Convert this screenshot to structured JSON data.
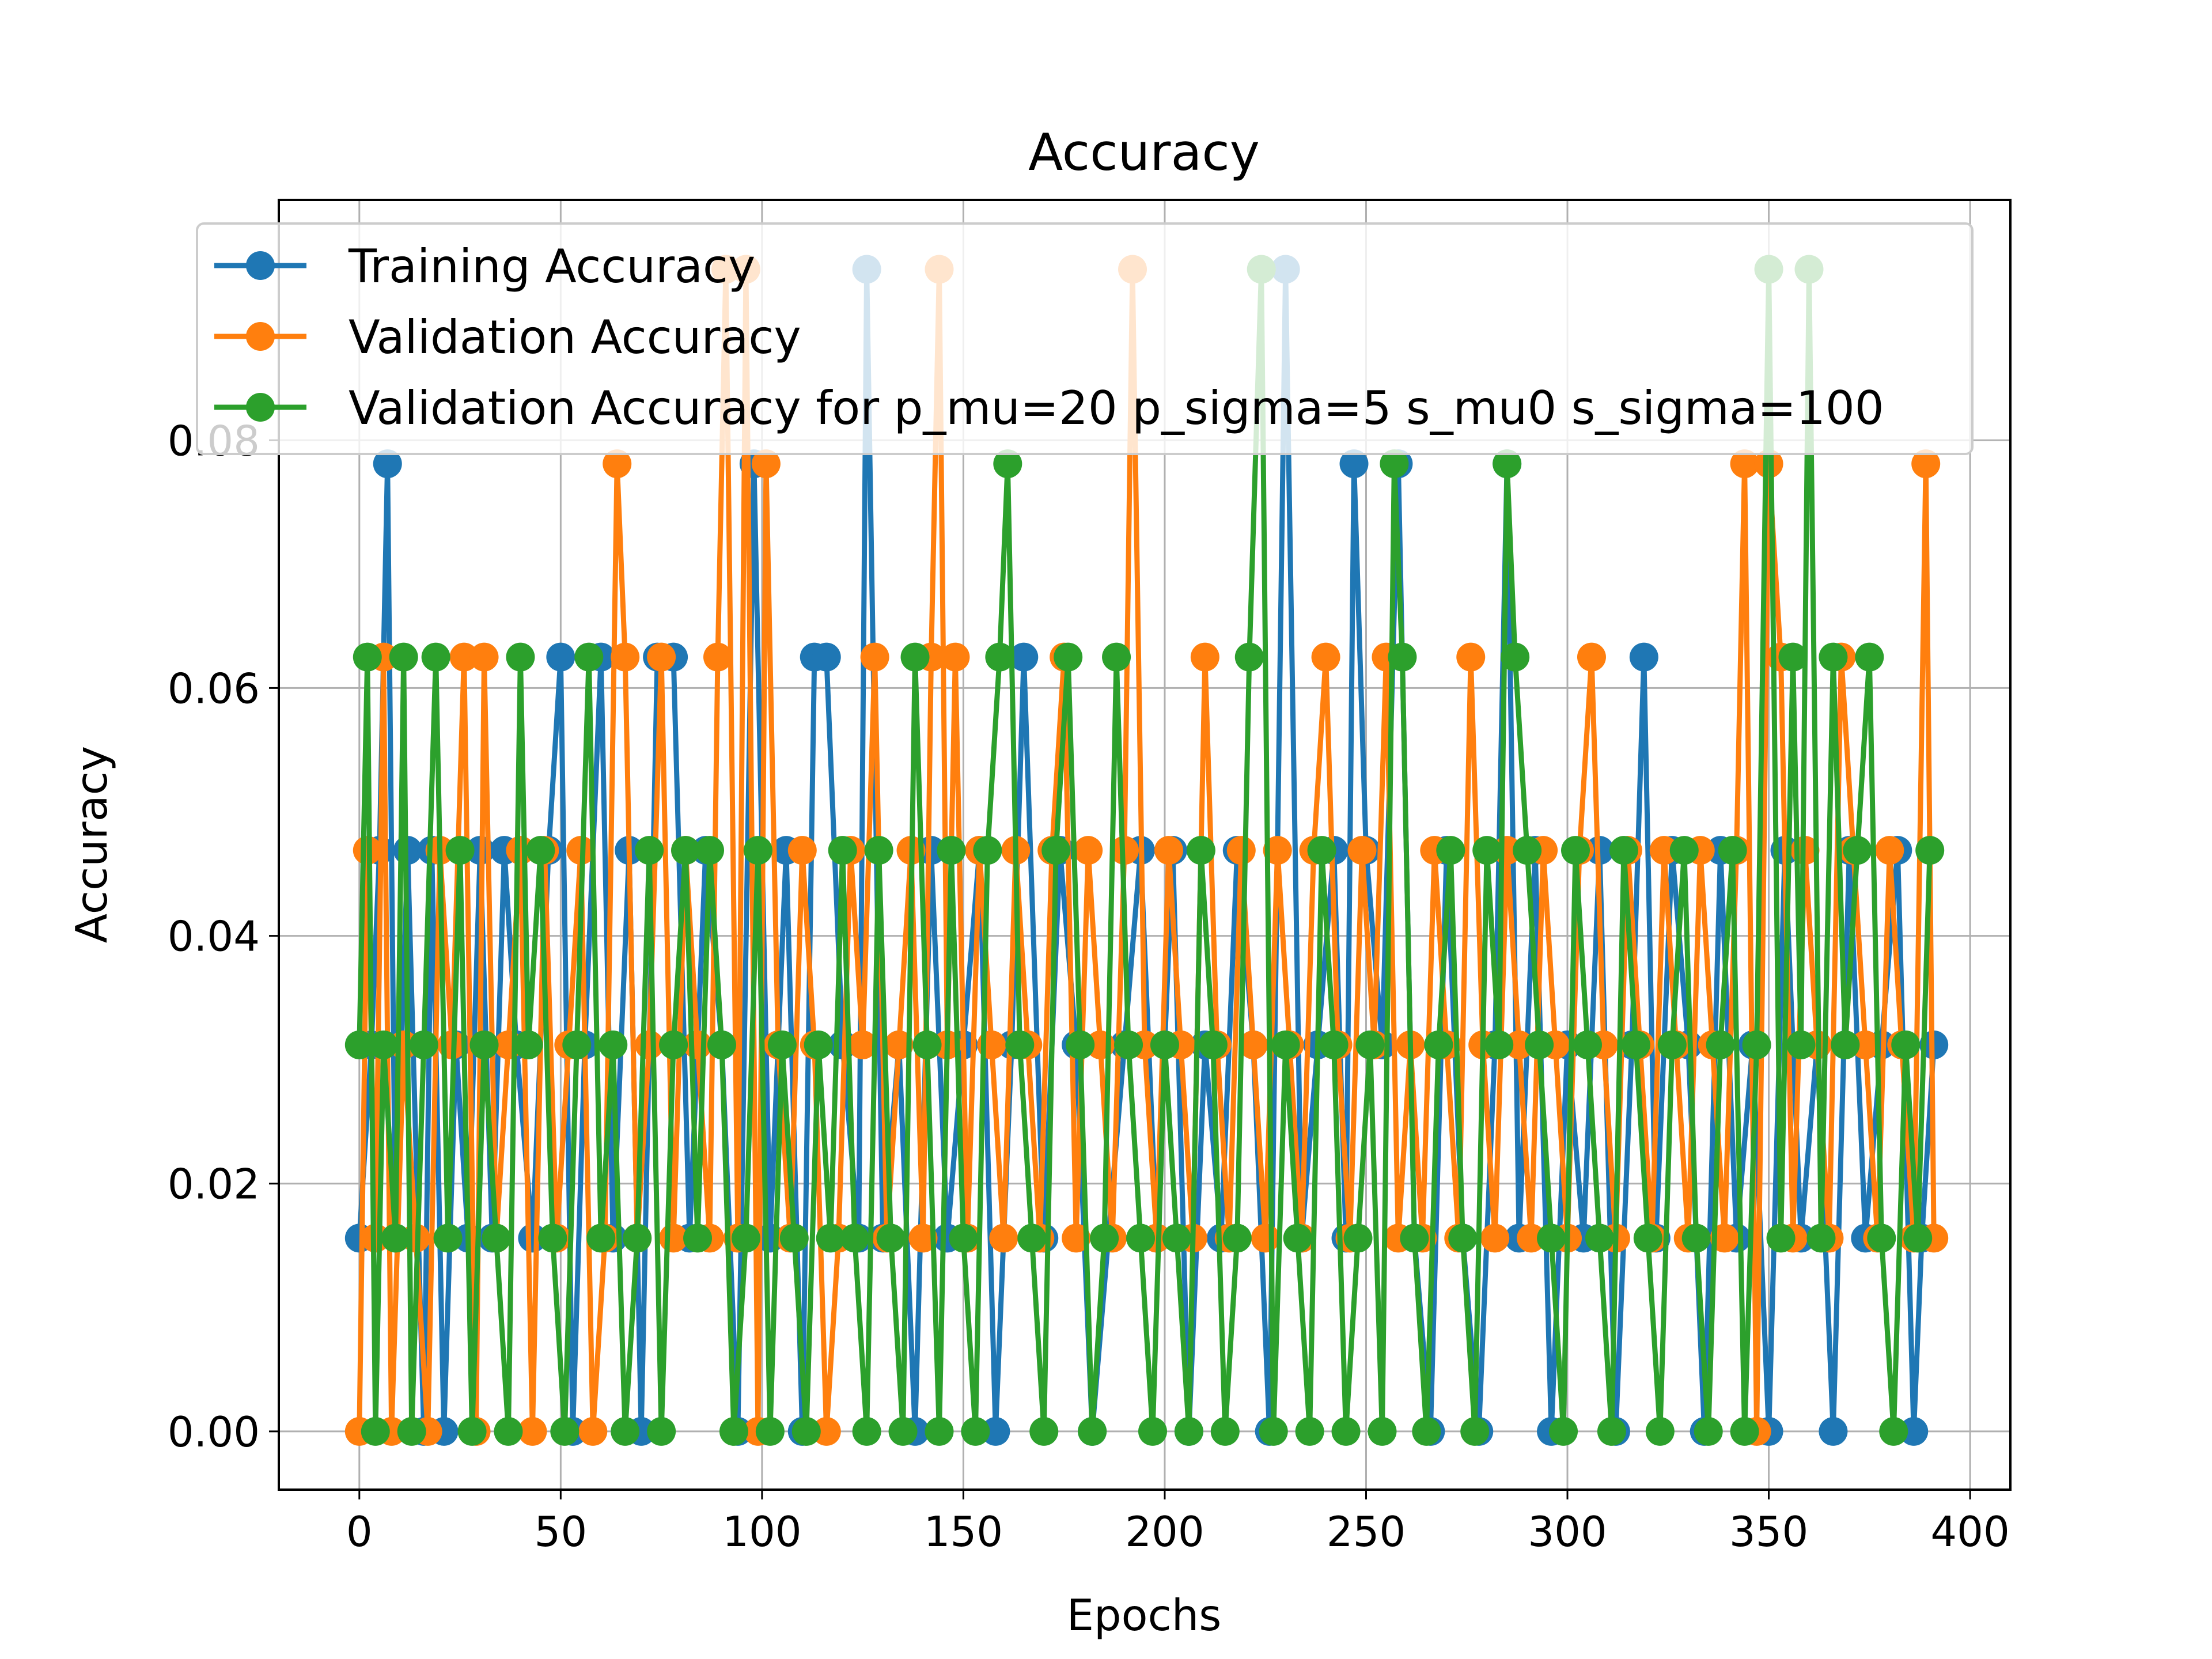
{
  "chart_data": {
    "type": "line",
    "title": "Accuracy",
    "xlabel": "Epochs",
    "ylabel": "Accuracy",
    "xlim": [
      -20,
      410
    ],
    "ylim": [
      -0.0047,
      0.0994
    ],
    "xticks": [
      0,
      50,
      100,
      150,
      200,
      250,
      300,
      350,
      400
    ],
    "xtick_labels": [
      "0",
      "50",
      "100",
      "150",
      "200",
      "250",
      "300",
      "350",
      "400"
    ],
    "yticks": [
      0.0,
      0.02,
      0.04,
      0.06,
      0.08
    ],
    "ytick_labels": [
      "0.00",
      "0.02",
      "0.04",
      "0.06",
      "0.08"
    ],
    "grid": true,
    "legend_position": "upper-left",
    "series": [
      {
        "name": "Training Accuracy",
        "color": "#1f77b4",
        "x": [
          0,
          3,
          5,
          7,
          9,
          12,
          16,
          18,
          21,
          24,
          27,
          30,
          33,
          36,
          39,
          43,
          47,
          50,
          53,
          56,
          60,
          63,
          67,
          70,
          74,
          78,
          82,
          86,
          90,
          94,
          98,
          102,
          106,
          110,
          113,
          116,
          120,
          124,
          126,
          130,
          134,
          138,
          142,
          146,
          150,
          154,
          158,
          162,
          165,
          170,
          174,
          178,
          182,
          186,
          190,
          194,
          198,
          202,
          206,
          210,
          214,
          218,
          222,
          226,
          230,
          234,
          238,
          242,
          245,
          247,
          250,
          254,
          258,
          262,
          266,
          270,
          274,
          278,
          282,
          285,
          288,
          292,
          296,
          300,
          304,
          308,
          312,
          316,
          319,
          322,
          326,
          330,
          334,
          338,
          342,
          346,
          350,
          354,
          358,
          362,
          366,
          370,
          374,
          378,
          382,
          386,
          388,
          391
        ],
        "y": [
          0.0156,
          0.0312,
          0.0469,
          0.0781,
          0.0156,
          0.0469,
          0.0,
          0.0469,
          0.0,
          0.0312,
          0.0156,
          0.0469,
          0.0156,
          0.0469,
          0.0312,
          0.0156,
          0.0469,
          0.0625,
          0.0,
          0.0312,
          0.0625,
          0.0156,
          0.0469,
          0.0,
          0.0625,
          0.0625,
          0.0156,
          0.0469,
          0.0312,
          0.0,
          0.0781,
          0.0156,
          0.0469,
          0.0,
          0.0625,
          0.0625,
          0.0312,
          0.0156,
          0.0938,
          0.0156,
          0.0312,
          0.0,
          0.0469,
          0.0156,
          0.0312,
          0.0469,
          0.0,
          0.0312,
          0.0625,
          0.0156,
          0.0469,
          0.0312,
          0.0,
          0.0156,
          0.0312,
          0.0469,
          0.0156,
          0.0469,
          0.0,
          0.0312,
          0.0156,
          0.0469,
          0.0312,
          0.0,
          0.0938,
          0.0156,
          0.0312,
          0.0469,
          0.0156,
          0.0781,
          0.0469,
          0.0312,
          0.0781,
          0.0156,
          0.0,
          0.0469,
          0.0156,
          0.0,
          0.0312,
          0.0781,
          0.0156,
          0.0469,
          0.0,
          0.0312,
          0.0156,
          0.0469,
          0.0,
          0.0312,
          0.0625,
          0.0156,
          0.0469,
          0.0312,
          0.0,
          0.0469,
          0.0156,
          0.0312,
          0.0,
          0.0469,
          0.0156,
          0.0312,
          0.0,
          0.0469,
          0.0156,
          0.0312,
          0.0469,
          0.0,
          0.0156,
          0.0312
        ]
      },
      {
        "name": "Validation Accuracy",
        "color": "#ff7f0e",
        "x": [
          0,
          2,
          4,
          6,
          8,
          11,
          14,
          17,
          20,
          23,
          26,
          29,
          31,
          34,
          37,
          40,
          43,
          46,
          49,
          52,
          55,
          58,
          61,
          64,
          66,
          69,
          72,
          75,
          78,
          81,
          84,
          87,
          89,
          91,
          94,
          96,
          99,
          101,
          104,
          107,
          110,
          113,
          116,
          119,
          122,
          125,
          128,
          131,
          134,
          137,
          140,
          142,
          144,
          146,
          148,
          151,
          154,
          157,
          160,
          163,
          166,
          169,
          172,
          175,
          178,
          181,
          184,
          187,
          190,
          192,
          195,
          198,
          201,
          204,
          207,
          210,
          213,
          216,
          219,
          222,
          225,
          228,
          231,
          234,
          237,
          240,
          243,
          246,
          249,
          252,
          255,
          258,
          261,
          264,
          267,
          270,
          273,
          276,
          279,
          282,
          285,
          288,
          291,
          294,
          297,
          300,
          303,
          306,
          309,
          312,
          315,
          318,
          321,
          324,
          327,
          330,
          333,
          336,
          339,
          342,
          344,
          347,
          350,
          353,
          356,
          359,
          362,
          365,
          368,
          371,
          374,
          377,
          380,
          383,
          386,
          389,
          391
        ],
        "y": [
          0.0,
          0.0469,
          0.0156,
          0.0625,
          0.0,
          0.0312,
          0.0156,
          0.0,
          0.0469,
          0.0312,
          0.0625,
          0.0,
          0.0625,
          0.0156,
          0.0312,
          0.0469,
          0.0,
          0.0469,
          0.0156,
          0.0312,
          0.0469,
          0.0,
          0.0156,
          0.0781,
          0.0625,
          0.0156,
          0.0312,
          0.0625,
          0.0156,
          0.0469,
          0.0312,
          0.0156,
          0.0625,
          0.0938,
          0.0156,
          0.0938,
          0.0,
          0.0781,
          0.0312,
          0.0156,
          0.0469,
          0.0312,
          0.0,
          0.0156,
          0.0469,
          0.0312,
          0.0625,
          0.0156,
          0.0312,
          0.0469,
          0.0156,
          0.0625,
          0.0938,
          0.0312,
          0.0625,
          0.0156,
          0.0469,
          0.0312,
          0.0156,
          0.0469,
          0.0312,
          0.0156,
          0.0469,
          0.0625,
          0.0156,
          0.0469,
          0.0312,
          0.0156,
          0.0469,
          0.0938,
          0.0312,
          0.0156,
          0.0469,
          0.0312,
          0.0156,
          0.0625,
          0.0312,
          0.0156,
          0.0469,
          0.0312,
          0.0156,
          0.0469,
          0.0312,
          0.0156,
          0.0469,
          0.0625,
          0.0312,
          0.0156,
          0.0469,
          0.0312,
          0.0625,
          0.0156,
          0.0312,
          0.0156,
          0.0469,
          0.0312,
          0.0156,
          0.0625,
          0.0312,
          0.0156,
          0.0469,
          0.0312,
          0.0156,
          0.0469,
          0.0312,
          0.0156,
          0.0469,
          0.0625,
          0.0312,
          0.0156,
          0.0469,
          0.0312,
          0.0156,
          0.0469,
          0.0312,
          0.0156,
          0.0469,
          0.0312,
          0.0156,
          0.0469,
          0.0781,
          0.0,
          0.0781,
          0.0625,
          0.0156,
          0.0469,
          0.0312,
          0.0156,
          0.0625,
          0.0469,
          0.0312,
          0.0156,
          0.0469,
          0.0312,
          0.0156,
          0.0781,
          0.0156
        ]
      },
      {
        "name": "Validation Accuracy for p_mu=20 p_sigma=5 s_mu0 s_sigma=100",
        "color": "#2ca02c",
        "x": [
          0,
          2,
          4,
          6,
          9,
          11,
          13,
          16,
          19,
          22,
          25,
          28,
          31,
          34,
          37,
          40,
          42,
          45,
          48,
          51,
          54,
          57,
          60,
          63,
          66,
          69,
          72,
          75,
          78,
          81,
          84,
          87,
          90,
          93,
          96,
          99,
          102,
          105,
          108,
          111,
          114,
          117,
          120,
          123,
          126,
          129,
          132,
          135,
          138,
          141,
          144,
          147,
          150,
          153,
          156,
          159,
          161,
          164,
          167,
          170,
          173,
          176,
          179,
          182,
          185,
          188,
          191,
          194,
          197,
          200,
          203,
          206,
          209,
          212,
          215,
          218,
          221,
          224,
          227,
          230,
          233,
          236,
          239,
          242,
          245,
          248,
          251,
          254,
          257,
          259,
          262,
          265,
          268,
          271,
          274,
          277,
          280,
          283,
          285,
          287,
          290,
          293,
          296,
          299,
          302,
          305,
          308,
          311,
          314,
          317,
          320,
          323,
          326,
          329,
          332,
          335,
          338,
          341,
          344,
          347,
          350,
          353,
          356,
          358,
          360,
          363,
          366,
          369,
          372,
          375,
          378,
          381,
          384,
          387,
          390
        ],
        "y": [
          0.0312,
          0.0625,
          0.0,
          0.0312,
          0.0156,
          0.0625,
          0.0,
          0.0312,
          0.0625,
          0.0156,
          0.0469,
          0.0,
          0.0312,
          0.0156,
          0.0,
          0.0625,
          0.0312,
          0.0469,
          0.0156,
          0.0,
          0.0312,
          0.0625,
          0.0156,
          0.0312,
          0.0,
          0.0156,
          0.0469,
          0.0,
          0.0312,
          0.0469,
          0.0156,
          0.0469,
          0.0312,
          0.0,
          0.0156,
          0.0469,
          0.0,
          0.0312,
          0.0156,
          0.0,
          0.0312,
          0.0156,
          0.0469,
          0.0156,
          0.0,
          0.0469,
          0.0156,
          0.0,
          0.0625,
          0.0312,
          0.0,
          0.0469,
          0.0156,
          0.0,
          0.0469,
          0.0625,
          0.0781,
          0.0312,
          0.0156,
          0.0,
          0.0469,
          0.0625,
          0.0312,
          0.0,
          0.0156,
          0.0625,
          0.0312,
          0.0156,
          0.0,
          0.0312,
          0.0156,
          0.0,
          0.0469,
          0.0312,
          0.0,
          0.0156,
          0.0625,
          0.0938,
          0.0,
          0.0312,
          0.0156,
          0.0,
          0.0469,
          0.0312,
          0.0,
          0.0156,
          0.0312,
          0.0,
          0.0781,
          0.0625,
          0.0156,
          0.0,
          0.0312,
          0.0469,
          0.0156,
          0.0,
          0.0469,
          0.0312,
          0.0781,
          0.0625,
          0.0469,
          0.0312,
          0.0156,
          0.0,
          0.0469,
          0.0312,
          0.0156,
          0.0,
          0.0469,
          0.0312,
          0.0156,
          0.0,
          0.0312,
          0.0469,
          0.0156,
          0.0,
          0.0312,
          0.0469,
          0.0,
          0.0312,
          0.0938,
          0.0156,
          0.0625,
          0.0312,
          0.0938,
          0.0156,
          0.0625,
          0.0312,
          0.0469,
          0.0625,
          0.0156,
          0.0,
          0.0312,
          0.0156,
          0.0469
        ]
      }
    ]
  }
}
